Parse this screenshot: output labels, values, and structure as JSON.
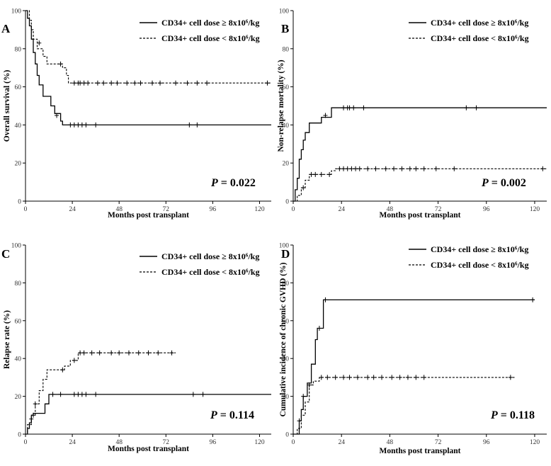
{
  "figure": {
    "legend": {
      "solid_label": "CD34+ cell dose ≥ 8x10⁶/kg",
      "dashed_label": "CD34+ cell dose < 8x10⁶/kg"
    },
    "colors": {
      "line": "#000000",
      "axis": "#000000",
      "tick_text": "#333333"
    }
  },
  "chart_data": [
    {
      "panel": "A",
      "type": "line",
      "subtype": "kaplan-meier",
      "ylabel": "Overall survival (%)",
      "xlabel": "Months post transplant",
      "p_value_prefix": "P",
      "p_value": "= 0.022",
      "xlim": [
        0,
        126
      ],
      "ylim": [
        0,
        100
      ],
      "x_ticks": [
        0,
        24,
        48,
        72,
        96,
        120
      ],
      "y_ticks": [
        0,
        20,
        40,
        60,
        80,
        100
      ],
      "series": [
        {
          "name": "CD34+ cell dose ≥ 8x10⁶/kg",
          "style": "solid",
          "steps": [
            [
              0,
              100
            ],
            [
              1,
              96
            ],
            [
              2,
              92
            ],
            [
              3,
              85
            ],
            [
              4,
              78
            ],
            [
              5,
              72
            ],
            [
              6,
              66
            ],
            [
              7,
              61
            ],
            [
              9,
              55
            ],
            [
              13,
              50
            ],
            [
              15,
              46
            ],
            [
              18,
              42
            ],
            [
              19,
              40
            ],
            [
              126,
              40
            ]
          ],
          "censored": [
            [
              16,
              45
            ],
            [
              23,
              40
            ],
            [
              25,
              40
            ],
            [
              27,
              40
            ],
            [
              29,
              40
            ],
            [
              31,
              40
            ],
            [
              36,
              40
            ],
            [
              84,
              40
            ],
            [
              88,
              40
            ]
          ]
        },
        {
          "name": "CD34+ cell dose < 8x10⁶/kg",
          "style": "dashed",
          "steps": [
            [
              0,
              100
            ],
            [
              2,
              95
            ],
            [
              3,
              90
            ],
            [
              4,
              85
            ],
            [
              6,
              80
            ],
            [
              9,
              76
            ],
            [
              11,
              72
            ],
            [
              19,
              70
            ],
            [
              21,
              66
            ],
            [
              22,
              62
            ],
            [
              126,
              62
            ]
          ],
          "censored": [
            [
              7,
              83
            ],
            [
              18,
              72
            ],
            [
              25,
              62
            ],
            [
              27,
              62
            ],
            [
              28,
              62
            ],
            [
              30,
              62
            ],
            [
              32,
              62
            ],
            [
              37,
              62
            ],
            [
              40,
              62
            ],
            [
              44,
              62
            ],
            [
              47,
              62
            ],
            [
              52,
              62
            ],
            [
              56,
              62
            ],
            [
              59,
              62
            ],
            [
              65,
              62
            ],
            [
              69,
              62
            ],
            [
              77,
              62
            ],
            [
              83,
              62
            ],
            [
              88,
              62
            ],
            [
              93,
              62
            ],
            [
              124,
              62
            ]
          ]
        }
      ]
    },
    {
      "panel": "B",
      "type": "line",
      "subtype": "cumulative-incidence",
      "ylabel": "Non-relapse mortality (%)",
      "xlabel": "Months post transplant",
      "p_value_prefix": "P",
      "p_value": "= 0.002",
      "xlim": [
        0,
        126
      ],
      "ylim": [
        0,
        100
      ],
      "x_ticks": [
        0,
        24,
        48,
        72,
        96,
        120
      ],
      "y_ticks": [
        0,
        20,
        40,
        60,
        80,
        100
      ],
      "series": [
        {
          "name": "CD34+ cell dose ≥ 8x10⁶/kg",
          "style": "solid",
          "steps": [
            [
              0,
              0
            ],
            [
              1,
              6
            ],
            [
              2,
              12
            ],
            [
              3,
              22
            ],
            [
              4,
              27
            ],
            [
              5,
              32
            ],
            [
              6,
              36
            ],
            [
              8,
              41
            ],
            [
              14,
              44
            ],
            [
              19,
              49
            ],
            [
              126,
              49
            ]
          ],
          "censored": [
            [
              16,
              45
            ],
            [
              25,
              49
            ],
            [
              27,
              49
            ],
            [
              28,
              49
            ],
            [
              30,
              49
            ],
            [
              35,
              49
            ],
            [
              86,
              49
            ],
            [
              91,
              49
            ]
          ]
        },
        {
          "name": "CD34+ cell dose < 8x10⁶/kg",
          "style": "dashed",
          "steps": [
            [
              0,
              0
            ],
            [
              2,
              3
            ],
            [
              4,
              7
            ],
            [
              6,
              11
            ],
            [
              8,
              14
            ],
            [
              19,
              16
            ],
            [
              21,
              17
            ],
            [
              126,
              17
            ]
          ],
          "censored": [
            [
              5,
              7
            ],
            [
              9,
              14
            ],
            [
              11,
              14
            ],
            [
              14,
              14
            ],
            [
              18,
              14
            ],
            [
              23,
              17
            ],
            [
              25,
              17
            ],
            [
              27,
              17
            ],
            [
              29,
              17
            ],
            [
              31,
              17
            ],
            [
              33,
              17
            ],
            [
              37,
              17
            ],
            [
              41,
              17
            ],
            [
              46,
              17
            ],
            [
              50,
              17
            ],
            [
              54,
              17
            ],
            [
              58,
              17
            ],
            [
              61,
              17
            ],
            [
              65,
              17
            ],
            [
              71,
              17
            ],
            [
              80,
              17
            ],
            [
              124,
              17
            ]
          ]
        }
      ]
    },
    {
      "panel": "C",
      "type": "line",
      "subtype": "cumulative-incidence",
      "ylabel": "Relapse rate (%)",
      "xlabel": "Months post transplant",
      "p_value_prefix": "P",
      "p_value": "= 0.114",
      "xlim": [
        0,
        126
      ],
      "ylim": [
        0,
        100
      ],
      "x_ticks": [
        0,
        24,
        48,
        72,
        96,
        120
      ],
      "y_ticks": [
        0,
        20,
        40,
        60,
        80,
        100
      ],
      "series": [
        {
          "name": "CD34+ cell dose ≥ 8x10⁶/kg",
          "style": "solid",
          "steps": [
            [
              0,
              0
            ],
            [
              1,
              3
            ],
            [
              2,
              6
            ],
            [
              3,
              10
            ],
            [
              4,
              11
            ],
            [
              10,
              16
            ],
            [
              12,
              21
            ],
            [
              126,
              21
            ]
          ],
          "censored": [
            [
              4,
              10
            ],
            [
              14,
              21
            ],
            [
              18,
              21
            ],
            [
              25,
              21
            ],
            [
              27,
              21
            ],
            [
              29,
              21
            ],
            [
              31,
              21
            ],
            [
              36,
              21
            ],
            [
              86,
              21
            ],
            [
              91,
              21
            ]
          ]
        },
        {
          "name": "CD34+ cell dose < 8x10⁶/kg",
          "style": "dashed",
          "steps": [
            [
              0,
              0
            ],
            [
              1,
              5
            ],
            [
              3,
              10
            ],
            [
              5,
              16
            ],
            [
              7,
              23
            ],
            [
              9,
              29
            ],
            [
              11,
              34
            ],
            [
              20,
              36
            ],
            [
              23,
              39
            ],
            [
              27,
              43
            ],
            [
              77,
              43
            ]
          ],
          "censored": [
            [
              3,
              8
            ],
            [
              5,
              16
            ],
            [
              19,
              34
            ],
            [
              25,
              39
            ],
            [
              28,
              43
            ],
            [
              30,
              43
            ],
            [
              34,
              43
            ],
            [
              38,
              43
            ],
            [
              44,
              43
            ],
            [
              48,
              43
            ],
            [
              53,
              43
            ],
            [
              58,
              43
            ],
            [
              63,
              43
            ],
            [
              68,
              43
            ],
            [
              75,
              43
            ]
          ]
        }
      ]
    },
    {
      "panel": "D",
      "type": "line",
      "subtype": "cumulative-incidence",
      "ylabel": "Cumulative incidence of chronic GVHD (%)",
      "xlabel": "Months post transplant",
      "p_value_prefix": "P",
      "p_value": "= 0.118",
      "xlim": [
        0,
        126
      ],
      "ylim": [
        0,
        100
      ],
      "x_ticks": [
        0,
        24,
        48,
        72,
        96,
        120
      ],
      "y_ticks": [
        0,
        20,
        40,
        60,
        80,
        100
      ],
      "series": [
        {
          "name": "CD34+ cell dose ≥ 8x10⁶/kg",
          "style": "solid",
          "steps": [
            [
              0,
              0
            ],
            [
              3,
              7
            ],
            [
              4,
              13
            ],
            [
              5,
              20
            ],
            [
              7,
              27
            ],
            [
              9,
              37
            ],
            [
              11,
              50
            ],
            [
              12,
              56
            ],
            [
              15,
              71
            ],
            [
              120,
              71
            ]
          ],
          "censored": [
            [
              3,
              7
            ],
            [
              5,
              20
            ],
            [
              13,
              56
            ],
            [
              16,
              71
            ],
            [
              119,
              71
            ]
          ]
        },
        {
          "name": "CD34+ cell dose < 8x10⁶/kg",
          "style": "dashed",
          "steps": [
            [
              0,
              0
            ],
            [
              2,
              3
            ],
            [
              4,
              10
            ],
            [
              6,
              17
            ],
            [
              8,
              26
            ],
            [
              10,
              28
            ],
            [
              13,
              30
            ],
            [
              110,
              30
            ]
          ],
          "censored": [
            [
              8,
              26
            ],
            [
              14,
              30
            ],
            [
              17,
              30
            ],
            [
              21,
              30
            ],
            [
              25,
              30
            ],
            [
              28,
              30
            ],
            [
              32,
              30
            ],
            [
              37,
              30
            ],
            [
              40,
              30
            ],
            [
              44,
              30
            ],
            [
              49,
              30
            ],
            [
              53,
              30
            ],
            [
              57,
              30
            ],
            [
              61,
              30
            ],
            [
              65,
              30
            ],
            [
              108,
              30
            ]
          ]
        }
      ]
    }
  ]
}
